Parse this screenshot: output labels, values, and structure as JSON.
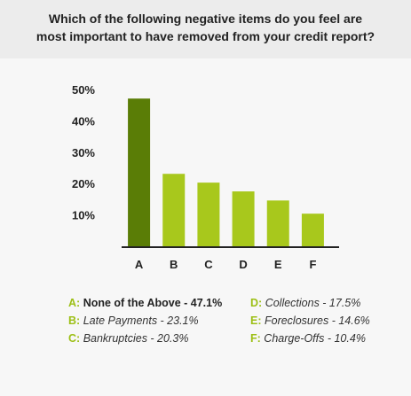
{
  "title_lines": [
    "Which of the following negative items do you feel are",
    "most important to have removed from your credit report?"
  ],
  "colors": {
    "primary_bar": "#5a7d06",
    "other_bars": "#a8c81c",
    "legend_key": "#9cbf14",
    "axis": "#222222",
    "gridline": "#d9d9d9"
  },
  "chart_data": {
    "type": "bar",
    "categories": [
      "A",
      "B",
      "C",
      "D",
      "E",
      "F"
    ],
    "values": [
      47.1,
      23.1,
      20.3,
      17.5,
      14.6,
      10.4
    ],
    "yticks": [
      "50%",
      "40%",
      "30%",
      "20%",
      "10%"
    ],
    "ytick_values": [
      50,
      40,
      30,
      20,
      10
    ],
    "ylim": [
      0,
      50
    ],
    "grid": false,
    "highlight_index": 0
  },
  "legend": [
    {
      "key": "A:",
      "text": "None of the Above - 47.1%"
    },
    {
      "key": "B:",
      "text": "Late Payments - 23.1%"
    },
    {
      "key": "C:",
      "text": "Bankruptcies - 20.3%"
    },
    {
      "key": "D:",
      "text": "Collections - 17.5%"
    },
    {
      "key": "E:",
      "text": "Foreclosures - 14.6%"
    },
    {
      "key": "F:",
      "text": "Charge-Offs - 10.4%"
    }
  ]
}
